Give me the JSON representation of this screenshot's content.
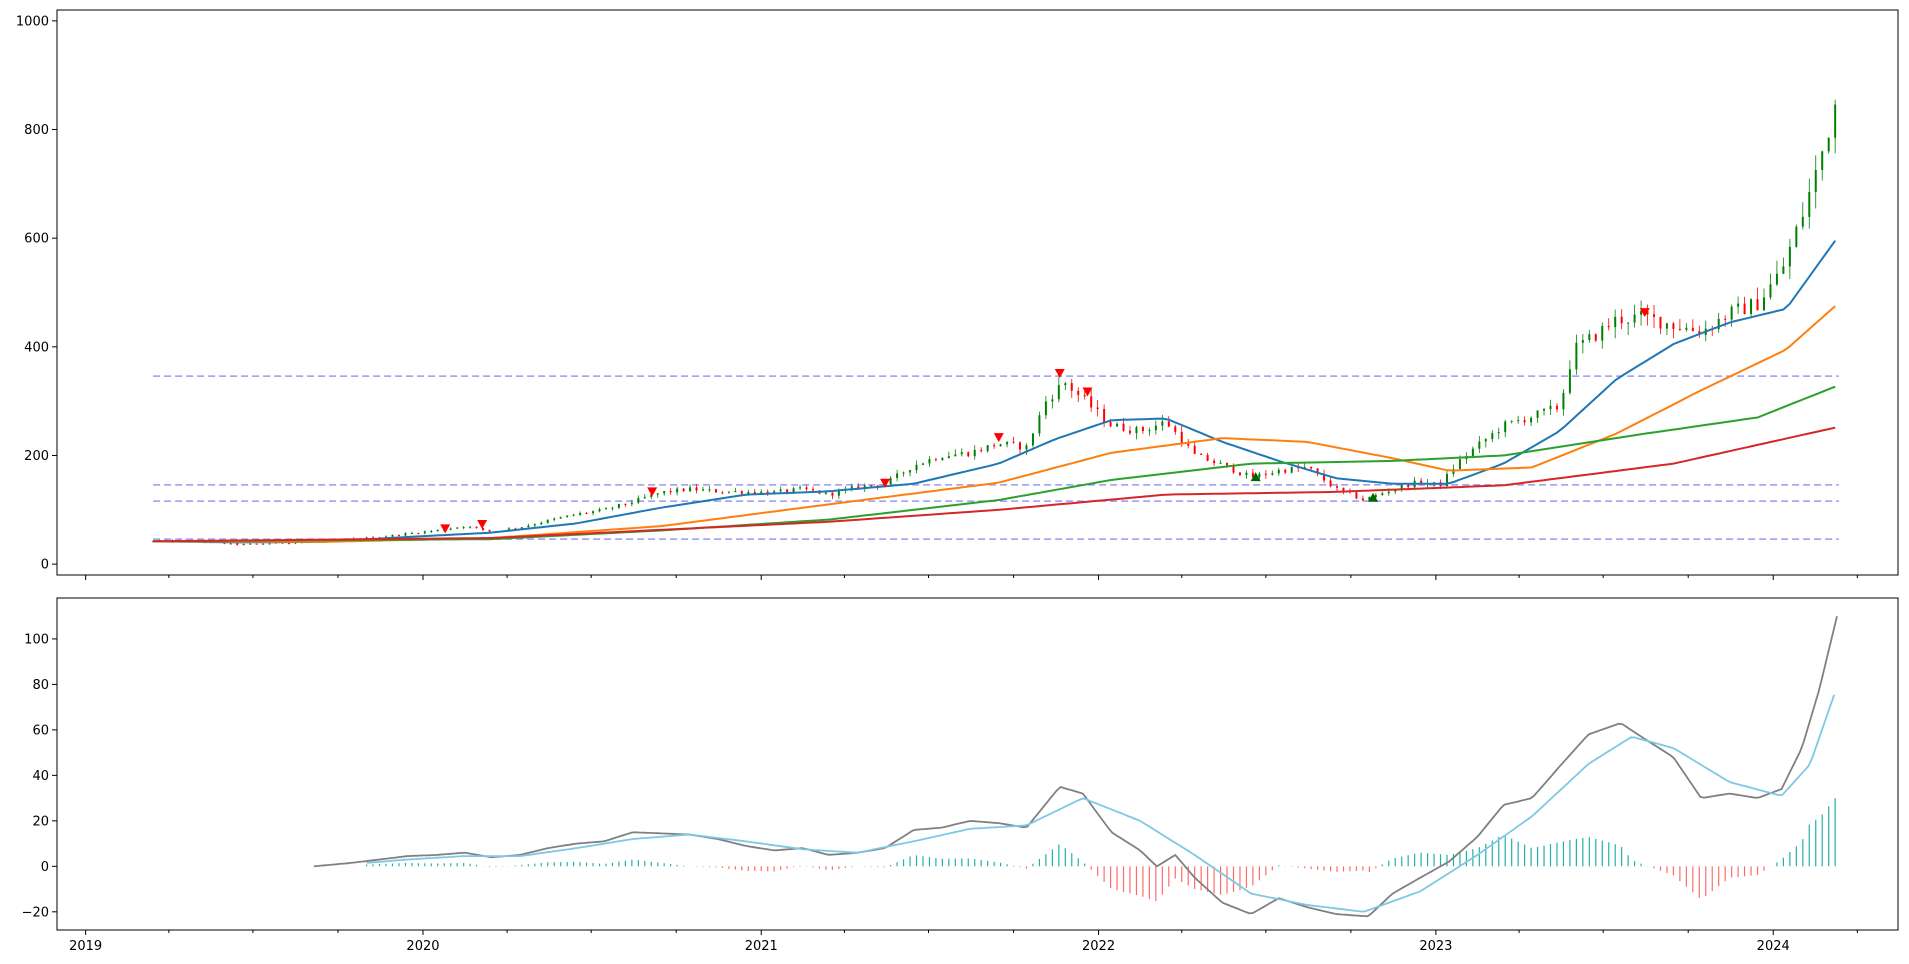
{
  "chart_data": [
    {
      "type": "candlestick",
      "title": "",
      "xlabel": "",
      "ylabel": "",
      "xlim": [
        "2018-12-01",
        "2024-05-15"
      ],
      "ylim": [
        -20,
        1020
      ],
      "x_ticks": [
        "2019",
        "2020",
        "2021",
        "2022",
        "2023",
        "2024"
      ],
      "x_tick_dates": [
        "2019-01-01",
        "2020-01-01",
        "2021-01-01",
        "2022-01-01",
        "2023-01-01",
        "2024-01-01"
      ],
      "y_ticks": [
        0,
        200,
        400,
        600,
        800,
        1000
      ],
      "grid": false,
      "up_color": "#008000",
      "down_color": "#ff0000",
      "price_key_points": [
        [
          "2019-03-15",
          42
        ],
        [
          "2019-04-15",
          44
        ],
        [
          "2019-05-15",
          40
        ],
        [
          "2019-06-15",
          36
        ],
        [
          "2019-07-15",
          38
        ],
        [
          "2019-08-15",
          40
        ],
        [
          "2019-09-15",
          42
        ],
        [
          "2019-10-15",
          46
        ],
        [
          "2019-11-15",
          50
        ],
        [
          "2019-12-15",
          56
        ],
        [
          "2020-01-15",
          62
        ],
        [
          "2020-02-15",
          70
        ],
        [
          "2020-03-15",
          60
        ],
        [
          "2020-04-15",
          68
        ],
        [
          "2020-05-15",
          80
        ],
        [
          "2020-06-15",
          92
        ],
        [
          "2020-07-15",
          100
        ],
        [
          "2020-08-15",
          115
        ],
        [
          "2020-09-15",
          132
        ],
        [
          "2020-10-15",
          138
        ],
        [
          "2020-11-15",
          134
        ],
        [
          "2020-12-15",
          133
        ],
        [
          "2021-01-15",
          132
        ],
        [
          "2021-02-15",
          138
        ],
        [
          "2021-03-15",
          128
        ],
        [
          "2021-04-15",
          142
        ],
        [
          "2021-05-15",
          148
        ],
        [
          "2021-06-15",
          182
        ],
        [
          "2021-07-15",
          200
        ],
        [
          "2021-08-15",
          205
        ],
        [
          "2021-09-15",
          222
        ],
        [
          "2021-10-15",
          215
        ],
        [
          "2021-11-05",
          300
        ],
        [
          "2021-11-25",
          335
        ],
        [
          "2021-12-25",
          288
        ],
        [
          "2022-01-15",
          255
        ],
        [
          "2022-02-15",
          245
        ],
        [
          "2022-03-15",
          262
        ],
        [
          "2022-04-15",
          200
        ],
        [
          "2022-05-15",
          182
        ],
        [
          "2022-06-15",
          160
        ],
        [
          "2022-07-15",
          172
        ],
        [
          "2022-08-15",
          178
        ],
        [
          "2022-09-15",
          138
        ],
        [
          "2022-10-15",
          118
        ],
        [
          "2022-11-15",
          138
        ],
        [
          "2022-12-15",
          152
        ],
        [
          "2023-01-05",
          145
        ],
        [
          "2023-01-25",
          188
        ],
        [
          "2023-02-15",
          218
        ],
        [
          "2023-03-15",
          255
        ],
        [
          "2023-04-15",
          272
        ],
        [
          "2023-05-15",
          290
        ],
        [
          "2023-05-30",
          395
        ],
        [
          "2023-06-20",
          418
        ],
        [
          "2023-07-15",
          450
        ],
        [
          "2023-08-15",
          455
        ],
        [
          "2023-09-15",
          440
        ],
        [
          "2023-10-15",
          428
        ],
        [
          "2023-11-15",
          462
        ],
        [
          "2023-12-15",
          480
        ],
        [
          "2024-01-10",
          540
        ],
        [
          "2024-02-01",
          640
        ],
        [
          "2024-02-20",
          740
        ],
        [
          "2024-03-10",
          860
        ]
      ],
      "series": [
        {
          "name": "",
          "color": "#1f77b4",
          "points": [
            [
              "2019-03-15",
              42
            ],
            [
              "2019-06-15",
              40
            ],
            [
              "2019-09-15",
              41
            ],
            [
              "2019-12-15",
              50
            ],
            [
              "2020-03-15",
              58
            ],
            [
              "2020-06-15",
              75
            ],
            [
              "2020-09-15",
              104
            ],
            [
              "2020-12-15",
              128
            ],
            [
              "2021-03-15",
              134
            ],
            [
              "2021-06-15",
              148
            ],
            [
              "2021-09-15",
              185
            ],
            [
              "2021-11-15",
              230
            ],
            [
              "2022-01-15",
              265
            ],
            [
              "2022-03-15",
              268
            ],
            [
              "2022-05-15",
              225
            ],
            [
              "2022-07-15",
              190
            ],
            [
              "2022-09-15",
              158
            ],
            [
              "2022-11-15",
              148
            ],
            [
              "2023-01-15",
              148
            ],
            [
              "2023-03-15",
              185
            ],
            [
              "2023-05-15",
              245
            ],
            [
              "2023-07-15",
              340
            ],
            [
              "2023-09-15",
              405
            ],
            [
              "2023-11-15",
              445
            ],
            [
              "2024-01-15",
              470
            ],
            [
              "2024-03-10",
              600
            ]
          ]
        },
        {
          "name": "",
          "color": "#ff7f0e",
          "points": [
            [
              "2019-03-15",
              42
            ],
            [
              "2019-09-15",
              41
            ],
            [
              "2020-03-15",
              48
            ],
            [
              "2020-09-15",
              70
            ],
            [
              "2021-03-15",
              110
            ],
            [
              "2021-09-15",
              150
            ],
            [
              "2022-01-15",
              205
            ],
            [
              "2022-05-15",
              232
            ],
            [
              "2022-08-15",
              225
            ],
            [
              "2022-11-15",
              195
            ],
            [
              "2023-01-15",
              172
            ],
            [
              "2023-04-15",
              178
            ],
            [
              "2023-07-15",
              240
            ],
            [
              "2023-10-15",
              320
            ],
            [
              "2024-01-15",
              395
            ],
            [
              "2024-03-10",
              478
            ]
          ]
        },
        {
          "name": "",
          "color": "#2ca02c",
          "points": [
            [
              "2019-03-15",
              42
            ],
            [
              "2020-03-15",
              46
            ],
            [
              "2020-09-15",
              62
            ],
            [
              "2021-03-15",
              82
            ],
            [
              "2021-09-15",
              118
            ],
            [
              "2022-01-15",
              155
            ],
            [
              "2022-06-15",
              185
            ],
            [
              "2022-11-15",
              190
            ],
            [
              "2023-03-15",
              200
            ],
            [
              "2023-08-15",
              240
            ],
            [
              "2023-12-15",
              270
            ],
            [
              "2024-03-10",
              328
            ]
          ]
        },
        {
          "name": "",
          "color": "#d62728",
          "points": [
            [
              "2019-03-15",
              42
            ],
            [
              "2020-03-15",
              48
            ],
            [
              "2021-03-15",
              78
            ],
            [
              "2021-09-15",
              100
            ],
            [
              "2022-03-15",
              128
            ],
            [
              "2022-09-15",
              133
            ],
            [
              "2023-03-15",
              145
            ],
            [
              "2023-09-15",
              185
            ],
            [
              "2024-03-10",
              252
            ]
          ]
        }
      ],
      "hlines": {
        "color": "#9999ee",
        "values": [
          346,
          146,
          116,
          46
        ]
      },
      "sell_markers": {
        "color": "#ff0000",
        "points": [
          [
            "2020-01-25",
            64
          ],
          [
            "2020-03-05",
            72
          ],
          [
            "2020-09-05",
            132
          ],
          [
            "2021-05-15",
            148
          ],
          [
            "2021-09-15",
            232
          ],
          [
            "2021-11-20",
            350
          ],
          [
            "2021-12-20",
            316
          ],
          [
            "2023-08-15",
            462
          ]
        ]
      },
      "buy_markers": {
        "color": "#006400",
        "points": [
          [
            "2022-06-20",
            162
          ],
          [
            "2022-10-25",
            124
          ]
        ]
      }
    },
    {
      "type": "macd",
      "title": "",
      "xlabel": "",
      "ylabel": "",
      "xlim": [
        "2018-12-01",
        "2024-05-15"
      ],
      "ylim": [
        -28,
        118
      ],
      "x_ticks": [
        "2019",
        "2020",
        "2021",
        "2022",
        "2023",
        "2024"
      ],
      "x_tick_dates": [
        "2019-01-01",
        "2020-01-01",
        "2021-01-01",
        "2022-01-01",
        "2023-01-01",
        "2024-01-01"
      ],
      "y_ticks": [
        -20,
        0,
        20,
        40,
        60,
        80,
        100
      ],
      "grid": false,
      "series": [
        {
          "name": "",
          "color": "#808080",
          "points": [
            [
              "2019-09-05",
              0
            ],
            [
              "2019-10-15",
              1.5
            ],
            [
              "2019-11-15",
              3
            ],
            [
              "2019-12-15",
              4.5
            ],
            [
              "2020-01-15",
              5
            ],
            [
              "2020-02-15",
              6
            ],
            [
              "2020-03-15",
              4
            ],
            [
              "2020-04-15",
              5
            ],
            [
              "2020-05-15",
              8
            ],
            [
              "2020-06-15",
              10
            ],
            [
              "2020-07-15",
              11
            ],
            [
              "2020-08-15",
              15
            ],
            [
              "2020-09-15",
              14.5
            ],
            [
              "2020-10-15",
              14
            ],
            [
              "2020-11-15",
              12
            ],
            [
              "2020-12-15",
              9
            ],
            [
              "2021-01-15",
              7
            ],
            [
              "2021-02-15",
              8
            ],
            [
              "2021-03-15",
              5
            ],
            [
              "2021-04-15",
              6
            ],
            [
              "2021-05-15",
              8
            ],
            [
              "2021-06-15",
              16
            ],
            [
              "2021-07-15",
              17
            ],
            [
              "2021-08-15",
              20
            ],
            [
              "2021-09-15",
              19
            ],
            [
              "2021-10-15",
              17
            ],
            [
              "2021-11-20",
              35
            ],
            [
              "2021-12-15",
              32
            ],
            [
              "2022-01-15",
              15
            ],
            [
              "2022-02-15",
              7
            ],
            [
              "2022-03-05",
              0
            ],
            [
              "2022-03-25",
              5
            ],
            [
              "2022-04-15",
              -5
            ],
            [
              "2022-05-15",
              -16
            ],
            [
              "2022-06-15",
              -21
            ],
            [
              "2022-07-15",
              -14
            ],
            [
              "2022-08-15",
              -18
            ],
            [
              "2022-09-15",
              -21
            ],
            [
              "2022-10-20",
              -22
            ],
            [
              "2022-11-15",
              -12
            ],
            [
              "2022-12-15",
              -5
            ],
            [
              "2023-01-15",
              2
            ],
            [
              "2023-02-15",
              13
            ],
            [
              "2023-03-15",
              27
            ],
            [
              "2023-04-15",
              30
            ],
            [
              "2023-05-15",
              44
            ],
            [
              "2023-06-15",
              58
            ],
            [
              "2023-07-20",
              63
            ],
            [
              "2023-08-15",
              56
            ],
            [
              "2023-09-15",
              48
            ],
            [
              "2023-10-15",
              30
            ],
            [
              "2023-11-15",
              32
            ],
            [
              "2023-12-15",
              30
            ],
            [
              "2024-01-10",
              34
            ],
            [
              "2024-02-01",
              52
            ],
            [
              "2024-02-20",
              78
            ],
            [
              "2024-03-10",
              110
            ]
          ]
        },
        {
          "name": "",
          "color": "#7ec8e3",
          "points": [
            [
              "2019-11-01",
              1.5
            ],
            [
              "2019-12-15",
              3
            ],
            [
              "2020-02-15",
              4.5
            ],
            [
              "2020-04-15",
              4.5
            ],
            [
              "2020-06-15",
              8
            ],
            [
              "2020-08-15",
              12
            ],
            [
              "2020-10-15",
              14
            ],
            [
              "2020-12-15",
              11
            ],
            [
              "2021-02-15",
              7.5
            ],
            [
              "2021-04-15",
              6
            ],
            [
              "2021-06-15",
              11
            ],
            [
              "2021-08-15",
              16.5
            ],
            [
              "2021-10-15",
              18
            ],
            [
              "2021-12-15",
              30
            ],
            [
              "2022-02-15",
              20
            ],
            [
              "2022-04-15",
              5
            ],
            [
              "2022-06-15",
              -12
            ],
            [
              "2022-08-15",
              -17
            ],
            [
              "2022-10-15",
              -20
            ],
            [
              "2022-12-15",
              -11
            ],
            [
              "2023-02-15",
              5
            ],
            [
              "2023-04-15",
              22
            ],
            [
              "2023-06-15",
              45
            ],
            [
              "2023-08-01",
              57
            ],
            [
              "2023-09-15",
              52
            ],
            [
              "2023-11-15",
              37
            ],
            [
              "2024-01-10",
              31
            ],
            [
              "2024-02-10",
              45
            ],
            [
              "2024-03-10",
              79
            ]
          ]
        }
      ],
      "histogram": {
        "positive_color": "#20b2aa",
        "negative_color": "#ff6b6b"
      }
    }
  ]
}
